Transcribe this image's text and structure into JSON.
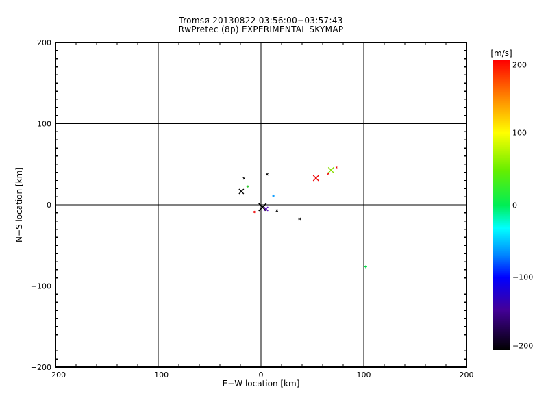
{
  "chart_data": {
    "type": "scatter",
    "title": "Tromsø 20130822 03:56:00−03:57:43",
    "subtitle": "RwPretec (8p) EXPERIMENTAL SKYMAP",
    "xlabel": "E−W location [km]",
    "ylabel": "N−S location [km]",
    "xlim": [
      -200,
      200
    ],
    "ylim": [
      -200,
      200
    ],
    "xticks": [
      -200,
      -100,
      0,
      100,
      200
    ],
    "yticks": [
      -200,
      -100,
      0,
      100,
      200
    ],
    "x_minor_interval": 20,
    "y_minor_interval": 10,
    "grid": true,
    "grid_color": "#000000",
    "background": "#ffffff",
    "points": [
      {
        "x": -16.5,
        "y": 32.5,
        "color": "#000000",
        "marker": "x",
        "size": 3,
        "velocity_ms": -200
      },
      {
        "x": 6.0,
        "y": 37.5,
        "color": "#000000",
        "marker": "x",
        "size": 3,
        "velocity_ms": -200
      },
      {
        "x": -12.8,
        "y": 22.4,
        "color": "#33cc33",
        "marker": "+",
        "size": 4,
        "velocity_ms": 15
      },
      {
        "x": -19.1,
        "y": 16.5,
        "color": "#000000",
        "marker": "x",
        "size": 7,
        "velocity_ms": -200
      },
      {
        "x": 12.2,
        "y": 11.0,
        "color": "#0099ff",
        "marker": "+",
        "size": 4,
        "velocity_ms": -80
      },
      {
        "x": 1.5,
        "y": -2.9,
        "color": "#000000",
        "marker": "x",
        "size": 11,
        "velocity_ms": -200
      },
      {
        "x": 4.9,
        "y": -5.1,
        "color": "#5500bb",
        "marker": "x",
        "size": 6,
        "velocity_ms": -150
      },
      {
        "x": -6.8,
        "y": -8.9,
        "color": "#ee0000",
        "marker": "x",
        "size": 3,
        "velocity_ms": 200
      },
      {
        "x": 15.5,
        "y": -7.2,
        "color": "#000000",
        "marker": "x",
        "size": 3,
        "velocity_ms": -200
      },
      {
        "x": 37.5,
        "y": -17.3,
        "color": "#000000",
        "marker": "x",
        "size": 3,
        "velocity_ms": -200
      },
      {
        "x": 53.5,
        "y": 32.9,
        "color": "#ee0000",
        "marker": "x",
        "size": 8,
        "velocity_ms": 200
      },
      {
        "x": 65.5,
        "y": 38.4,
        "color": "#ee0000",
        "marker": "x",
        "size": 3,
        "velocity_ms": 200
      },
      {
        "x": 68.2,
        "y": 42.7,
        "color": "#88dd00",
        "marker": "x",
        "size": 8,
        "velocity_ms": 70
      },
      {
        "x": 73.5,
        "y": 46.0,
        "color": "#ee0000",
        "marker": "x",
        "size": 2,
        "velocity_ms": 200
      },
      {
        "x": 101.9,
        "y": -76.4,
        "color": "#00dd44",
        "marker": "+",
        "size": 4,
        "velocity_ms": 0
      }
    ],
    "colorbar": {
      "label": "[m/s]",
      "min": -200,
      "max": 200,
      "ticks": [
        200,
        100,
        0,
        -100,
        -200
      ],
      "gradient_stops": [
        {
          "at": 0.0,
          "color": "#ff0000"
        },
        {
          "at": 0.13,
          "color": "#ff8800"
        },
        {
          "at": 0.25,
          "color": "#ffff00"
        },
        {
          "at": 0.38,
          "color": "#66ee00"
        },
        {
          "at": 0.5,
          "color": "#00ee55"
        },
        {
          "at": 0.58,
          "color": "#00ffff"
        },
        {
          "at": 0.67,
          "color": "#0088ff"
        },
        {
          "at": 0.75,
          "color": "#0000ff"
        },
        {
          "at": 0.86,
          "color": "#440099"
        },
        {
          "at": 1.0,
          "color": "#000000"
        }
      ]
    }
  }
}
